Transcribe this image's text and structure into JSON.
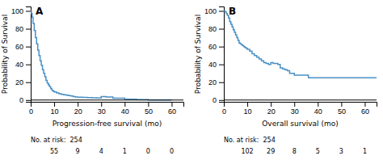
{
  "chart_data": [
    {
      "type": "step",
      "panel_label": "A",
      "x_label": "Progression-free survival (mo)",
      "y_label": "Probability of Survival",
      "xlim": [
        0,
        65
      ],
      "ylim": [
        -2,
        105
      ],
      "xticks": [
        0,
        10,
        20,
        30,
        40,
        50,
        60
      ],
      "yticks": [
        0,
        20,
        40,
        60,
        80,
        100
      ],
      "color": "#4a90c4",
      "x": [
        0,
        0.3,
        0.6,
        1,
        1.5,
        2,
        2.5,
        3,
        3.5,
        4,
        4.5,
        5,
        5.5,
        6,
        6.5,
        7,
        7.5,
        8,
        8.5,
        9,
        9.5,
        10,
        11,
        12,
        13,
        14,
        15,
        16,
        17,
        18,
        19,
        20,
        22,
        24,
        26,
        28,
        30,
        32,
        35,
        40,
        45,
        50,
        60
      ],
      "values": [
        100,
        97,
        93,
        86,
        78,
        70,
        63,
        56,
        50,
        44,
        39,
        34,
        30,
        26,
        22,
        19,
        17,
        15,
        13,
        11,
        10,
        9,
        8,
        7,
        6.5,
        6,
        5.5,
        5,
        4.5,
        4,
        3.5,
        3.2,
        3,
        2.8,
        2.5,
        2.2,
        4,
        3.5,
        2,
        1,
        0.5,
        0,
        0
      ],
      "hlines": [
        0
      ],
      "at_risk_label": "No. at risk:  254",
      "at_risk": {
        "x": [
          10,
          20,
          30,
          40,
          50,
          60
        ],
        "values": [
          55,
          9,
          4,
          1,
          0,
          0
        ]
      }
    },
    {
      "type": "step",
      "panel_label": "B",
      "x_label": "Overall survival (mo)",
      "y_label": "Probability of Survival",
      "xlim": [
        0,
        65
      ],
      "ylim": [
        -2,
        105
      ],
      "xticks": [
        0,
        10,
        20,
        30,
        40,
        50,
        60
      ],
      "yticks": [
        0,
        20,
        40,
        60,
        80,
        100
      ],
      "color": "#4a90c4",
      "x": [
        0,
        0.5,
        1,
        1.5,
        2,
        2.5,
        3,
        3.5,
        4,
        4.5,
        5,
        5.5,
        6,
        6.5,
        7,
        7.5,
        8,
        8.5,
        9,
        9.5,
        10,
        11,
        12,
        13,
        14,
        15,
        16,
        17,
        18,
        19,
        20,
        21,
        22,
        23,
        24,
        25,
        26,
        27,
        28,
        29,
        30,
        32,
        34,
        36,
        38,
        40,
        42,
        44,
        46,
        48,
        50,
        52,
        54,
        56,
        58,
        60,
        62,
        64,
        65
      ],
      "values": [
        100,
        99,
        97,
        95,
        92,
        88,
        85,
        82,
        79,
        76,
        73,
        70,
        67,
        64,
        63,
        62,
        61,
        60,
        59,
        58,
        57,
        55,
        52,
        50,
        48,
        46,
        44,
        42,
        41,
        40,
        42,
        41,
        41,
        40,
        36,
        35,
        34,
        33,
        30,
        30,
        28,
        28,
        28,
        25,
        25,
        25,
        25,
        25,
        25,
        25,
        25,
        25,
        25,
        25,
        25,
        25,
        25,
        25,
        25
      ],
      "hlines": [
        0
      ],
      "at_risk_label": "No. at risk:  254",
      "at_risk": {
        "x": [
          10,
          20,
          30,
          40,
          50,
          60
        ],
        "values": [
          102,
          29,
          8,
          5,
          3,
          1
        ]
      }
    }
  ]
}
